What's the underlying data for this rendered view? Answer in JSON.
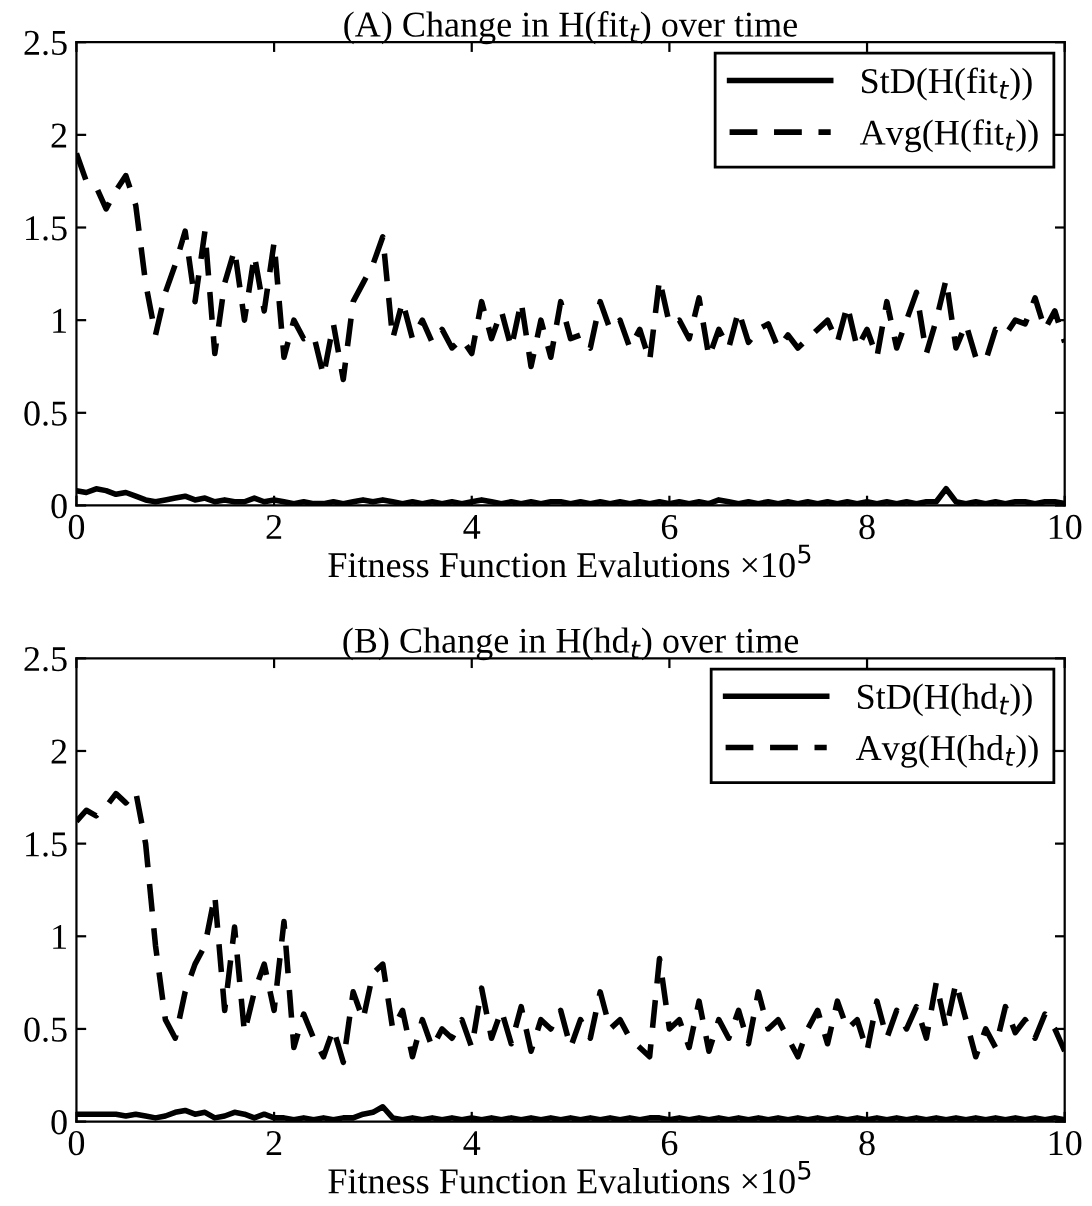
{
  "chart_data": [
    {
      "type": "line",
      "title": "(A) Change in H(fit$_{t}$) over time",
      "xlabel": "Fitness Function Evalutions ×10$^{5}$",
      "x": [
        0,
        0.1,
        0.2,
        0.3,
        0.4,
        0.5,
        0.6,
        0.7,
        0.8,
        0.9,
        1,
        1.1,
        1.2,
        1.3,
        1.4,
        1.5,
        1.6,
        1.7,
        1.8,
        1.9,
        2,
        2.1,
        2.2,
        2.3,
        2.4,
        2.5,
        2.6,
        2.7,
        2.8,
        2.9,
        3,
        3.1,
        3.2,
        3.3,
        3.4,
        3.5,
        3.6,
        3.7,
        3.8,
        3.9,
        4,
        4.1,
        4.2,
        4.3,
        4.4,
        4.5,
        4.6,
        4.7,
        4.8,
        4.9,
        5,
        5.1,
        5.2,
        5.3,
        5.4,
        5.5,
        5.6,
        5.7,
        5.8,
        5.9,
        6,
        6.1,
        6.2,
        6.3,
        6.4,
        6.5,
        6.6,
        6.7,
        6.8,
        6.9,
        7,
        7.1,
        7.2,
        7.3,
        7.4,
        7.5,
        7.6,
        7.7,
        7.8,
        7.9,
        8,
        8.1,
        8.2,
        8.3,
        8.4,
        8.5,
        8.6,
        8.7,
        8.8,
        8.9,
        9,
        9.1,
        9.2,
        9.3,
        9.4,
        9.5,
        9.6,
        9.7,
        9.8,
        9.9,
        10
      ],
      "series": [
        {
          "name": "StD(H(fit$_{t}$))",
          "color": "#000000",
          "line_style": "solid",
          "values": [
            0.08,
            0.07,
            0.09,
            0.08,
            0.06,
            0.07,
            0.05,
            0.03,
            0.02,
            0.03,
            0.04,
            0.05,
            0.03,
            0.04,
            0.02,
            0.03,
            0.02,
            0.02,
            0.04,
            0.02,
            0.03,
            0.02,
            0.01,
            0.02,
            0.01,
            0.01,
            0.02,
            0.01,
            0.02,
            0.03,
            0.02,
            0.03,
            0.02,
            0.01,
            0.02,
            0.01,
            0.02,
            0.01,
            0.02,
            0.01,
            0.02,
            0.03,
            0.02,
            0.01,
            0.02,
            0.01,
            0.02,
            0.01,
            0.02,
            0.02,
            0.01,
            0.02,
            0.01,
            0.02,
            0.01,
            0.02,
            0.01,
            0.02,
            0.01,
            0.02,
            0.01,
            0.02,
            0.01,
            0.02,
            0.01,
            0.03,
            0.02,
            0.01,
            0.02,
            0.01,
            0.02,
            0.01,
            0.02,
            0.01,
            0.02,
            0.01,
            0.02,
            0.01,
            0.02,
            0.01,
            0.02,
            0.01,
            0.02,
            0.01,
            0.02,
            0.01,
            0.02,
            0.02,
            0.09,
            0.02,
            0.01,
            0.02,
            0.01,
            0.02,
            0.01,
            0.02,
            0.02,
            0.01,
            0.02,
            0.02,
            0.01
          ]
        },
        {
          "name": "Avg(H(fit$_{t}$))",
          "color": "#000000",
          "line_style": "dashed",
          "values": [
            1.9,
            1.75,
            1.72,
            1.6,
            1.7,
            1.78,
            1.62,
            1.2,
            0.92,
            1.15,
            1.3,
            1.48,
            1.1,
            1.48,
            0.82,
            1.2,
            1.38,
            1.0,
            1.35,
            1.05,
            1.42,
            0.8,
            1.0,
            0.9,
            0.92,
            0.7,
            0.98,
            0.68,
            1.1,
            1.2,
            1.3,
            1.45,
            0.9,
            1.1,
            0.9,
            1.0,
            0.88,
            0.95,
            0.85,
            0.9,
            0.82,
            1.1,
            0.9,
            1.05,
            0.85,
            1.1,
            0.75,
            1.0,
            0.8,
            1.1,
            0.9,
            0.92,
            0.85,
            1.1,
            0.95,
            1.0,
            0.85,
            0.95,
            0.78,
            1.22,
            0.98,
            1.0,
            0.9,
            1.12,
            0.8,
            0.95,
            0.85,
            1.05,
            0.88,
            0.95,
            0.98,
            0.85,
            0.92,
            0.85,
            0.9,
            0.95,
            1.0,
            0.88,
            1.08,
            0.85,
            0.95,
            0.8,
            1.1,
            0.85,
            1.0,
            1.15,
            0.82,
            1.0,
            1.22,
            0.85,
            0.98,
            0.8,
            0.78,
            0.95,
            0.92,
            1.0,
            0.98,
            1.12,
            0.95,
            1.05,
            0.88
          ]
        }
      ],
      "xlim": [
        0,
        10
      ],
      "xticks": [
        0,
        2,
        4,
        6,
        8,
        10
      ],
      "ylim": [
        0,
        2.5
      ],
      "yticks": [
        0,
        0.5,
        1,
        1.5,
        2,
        2.5
      ],
      "grid": false,
      "legend": "top right"
    },
    {
      "type": "line",
      "title": "(B) Change in H(hd$_{t}$) over time",
      "xlabel": "Fitness Function Evalutions ×10$^{5}$",
      "x": [
        0,
        0.1,
        0.2,
        0.3,
        0.4,
        0.5,
        0.6,
        0.7,
        0.8,
        0.9,
        1,
        1.1,
        1.2,
        1.3,
        1.4,
        1.5,
        1.6,
        1.7,
        1.8,
        1.9,
        2,
        2.1,
        2.2,
        2.3,
        2.4,
        2.5,
        2.6,
        2.7,
        2.8,
        2.9,
        3,
        3.1,
        3.2,
        3.3,
        3.4,
        3.5,
        3.6,
        3.7,
        3.8,
        3.9,
        4,
        4.1,
        4.2,
        4.3,
        4.4,
        4.5,
        4.6,
        4.7,
        4.8,
        4.9,
        5,
        5.1,
        5.2,
        5.3,
        5.4,
        5.5,
        5.6,
        5.7,
        5.8,
        5.9,
        6,
        6.1,
        6.2,
        6.3,
        6.4,
        6.5,
        6.6,
        6.7,
        6.8,
        6.9,
        7,
        7.1,
        7.2,
        7.3,
        7.4,
        7.5,
        7.6,
        7.7,
        7.8,
        7.9,
        8,
        8.1,
        8.2,
        8.3,
        8.4,
        8.5,
        8.6,
        8.7,
        8.8,
        8.9,
        9,
        9.1,
        9.2,
        9.3,
        9.4,
        9.5,
        9.6,
        9.7,
        9.8,
        9.9,
        10
      ],
      "series": [
        {
          "name": "StD(H(hd$_{t}$))",
          "color": "#000000",
          "line_style": "solid",
          "values": [
            0.04,
            0.04,
            0.04,
            0.04,
            0.04,
            0.03,
            0.04,
            0.03,
            0.02,
            0.03,
            0.05,
            0.06,
            0.04,
            0.05,
            0.02,
            0.03,
            0.05,
            0.04,
            0.02,
            0.04,
            0.02,
            0.02,
            0.01,
            0.02,
            0.01,
            0.02,
            0.01,
            0.02,
            0.02,
            0.04,
            0.05,
            0.08,
            0.02,
            0.01,
            0.02,
            0.01,
            0.02,
            0.01,
            0.02,
            0.01,
            0.02,
            0.01,
            0.02,
            0.01,
            0.02,
            0.01,
            0.02,
            0.01,
            0.02,
            0.01,
            0.02,
            0.01,
            0.02,
            0.01,
            0.02,
            0.01,
            0.02,
            0.01,
            0.02,
            0.02,
            0.01,
            0.02,
            0.01,
            0.02,
            0.01,
            0.02,
            0.01,
            0.02,
            0.01,
            0.02,
            0.01,
            0.02,
            0.01,
            0.02,
            0.01,
            0.02,
            0.01,
            0.02,
            0.01,
            0.02,
            0.01,
            0.02,
            0.01,
            0.02,
            0.01,
            0.02,
            0.01,
            0.02,
            0.01,
            0.02,
            0.01,
            0.02,
            0.01,
            0.02,
            0.01,
            0.02,
            0.01,
            0.02,
            0.01,
            0.02,
            0.01
          ]
        },
        {
          "name": "Avg(H(hd$_{t}$))",
          "color": "#000000",
          "line_style": "dashed",
          "values": [
            1.62,
            1.68,
            1.65,
            1.7,
            1.77,
            1.72,
            1.78,
            1.5,
            0.95,
            0.55,
            0.45,
            0.7,
            0.85,
            0.95,
            1.22,
            0.6,
            1.05,
            0.48,
            0.7,
            0.85,
            0.6,
            1.08,
            0.4,
            0.58,
            0.45,
            0.35,
            0.5,
            0.32,
            0.7,
            0.55,
            0.8,
            0.85,
            0.5,
            0.6,
            0.35,
            0.55,
            0.4,
            0.5,
            0.45,
            0.55,
            0.4,
            0.72,
            0.45,
            0.6,
            0.42,
            0.62,
            0.38,
            0.55,
            0.5,
            0.6,
            0.4,
            0.55,
            0.45,
            0.7,
            0.5,
            0.55,
            0.45,
            0.4,
            0.35,
            0.88,
            0.5,
            0.55,
            0.4,
            0.65,
            0.38,
            0.55,
            0.45,
            0.6,
            0.42,
            0.7,
            0.5,
            0.55,
            0.45,
            0.35,
            0.5,
            0.6,
            0.42,
            0.65,
            0.5,
            0.55,
            0.38,
            0.65,
            0.45,
            0.6,
            0.5,
            0.62,
            0.45,
            0.75,
            0.5,
            0.75,
            0.55,
            0.35,
            0.5,
            0.4,
            0.62,
            0.48,
            0.55,
            0.45,
            0.58,
            0.5,
            0.38
          ]
        }
      ],
      "xlim": [
        0,
        10
      ],
      "xticks": [
        0,
        2,
        4,
        6,
        8,
        10
      ],
      "ylim": [
        0,
        2.5
      ],
      "yticks": [
        0,
        0.5,
        1,
        1.5,
        2,
        2.5
      ],
      "grid": false,
      "legend": "top right"
    }
  ]
}
